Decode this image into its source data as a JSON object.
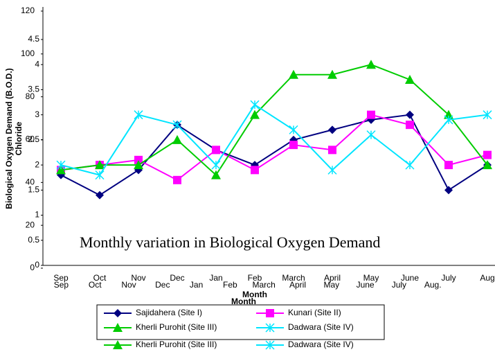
{
  "chart_data": [
    {
      "type": "line",
      "annotation": "Monthly variation in Biological Oxygen Demand",
      "x_label": "Month",
      "y_label": "Biological Oxygen Demand (B.O.D.)",
      "categories": [
        "Sep",
        "Oct",
        "Nov",
        "Dec",
        "Jan",
        "Feb",
        "March",
        "April",
        "May",
        "June",
        "July",
        "Aug"
      ],
      "ylim": [
        0,
        4.5
      ],
      "yticks": [
        0,
        0.5,
        1,
        1.5,
        2,
        2.5,
        3,
        3.5,
        4,
        4.5
      ],
      "series": [
        {
          "name": "Sajidahera (Site I)",
          "color": "#000080",
          "marker": "diamond",
          "values": [
            1.8,
            1.4,
            1.9,
            2.8,
            2.3,
            2.0,
            2.5,
            2.7,
            2.9,
            3.0,
            1.5,
            2.0
          ]
        },
        {
          "name": "Kunari (Site II)",
          "color": "#ff00ff",
          "marker": "square",
          "values": [
            1.9,
            2.0,
            2.1,
            1.7,
            2.3,
            1.9,
            2.4,
            2.3,
            3.0,
            2.8,
            2.0,
            2.2
          ]
        },
        {
          "name": "Kherli Purohit (Site III)",
          "color": "#00cc00",
          "marker": "triangle",
          "values": [
            1.9,
            2.0,
            2.0,
            2.5,
            1.8,
            3.0,
            3.8,
            3.8,
            4.0,
            3.7,
            3.0,
            2.0
          ]
        },
        {
          "name": "Dadwara (Site IV)",
          "color": "#00e5ff",
          "marker": "star",
          "values": [
            2.0,
            1.8,
            3.0,
            2.8,
            2.0,
            3.2,
            2.7,
            1.9,
            2.6,
            2.0,
            2.9,
            3.0
          ]
        }
      ]
    },
    {
      "type": "line",
      "x_label": "Month",
      "y_label": "Chloride",
      "categories": [
        "Sep",
        "Oct",
        "Nov",
        "Dec",
        "Jan",
        "Feb",
        "March",
        "April",
        "May",
        "June",
        "July",
        "Aug."
      ],
      "ylim": [
        0,
        120
      ],
      "yticks": [
        0,
        20,
        40,
        60,
        80,
        100,
        120
      ],
      "series": [
        {
          "name": "Kherli Purohit (Site III)",
          "color": "#00cc00",
          "marker": "triangle"
        },
        {
          "name": "Dadwara (Site IV)",
          "color": "#00e5ff",
          "marker": "star"
        }
      ]
    }
  ]
}
